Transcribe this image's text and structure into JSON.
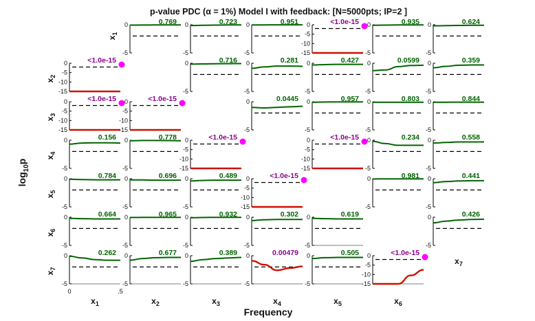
{
  "chart_data": {
    "type": "line",
    "title": "p-value PDC (α = 1%) Model I with feedback: [N=5000pts; IP=2 ]",
    "xlabel": "Frequency",
    "ylabel": "log10p",
    "variables": [
      "x1",
      "x2",
      "x3",
      "x4",
      "x5",
      "x6",
      "x7"
    ],
    "x_ticks": [
      "0",
      ".5"
    ],
    "xlim": [
      0,
      0.5
    ],
    "threshold_log10": -2,
    "colors": {
      "significant": "#cc1100",
      "nonsignificant": "#006400",
      "threshold": "#000000",
      "marker": "#ff00ff",
      "sig_label": "#8b008b",
      "nonsig_label": "#006400"
    },
    "panels": [
      {
        "row": 1,
        "col": 2,
        "label": "0.769",
        "significant": false,
        "ylim": [
          -5,
          0
        ],
        "curve": [
          -0.06,
          -0.05,
          -0.04,
          -0.03,
          -0.02
        ]
      },
      {
        "row": 1,
        "col": 3,
        "label": "0.723",
        "significant": false,
        "ylim": [
          -5,
          0
        ],
        "curve": [
          -0.14,
          -0.1,
          -0.06,
          -0.04,
          -0.03
        ]
      },
      {
        "row": 1,
        "col": 4,
        "label": "0.951",
        "significant": false,
        "ylim": [
          -5,
          0
        ],
        "curve": [
          -0.02,
          -0.02,
          -0.01,
          -0.01,
          -0.01
        ]
      },
      {
        "row": 1,
        "col": 5,
        "label": "<1.0e-15",
        "significant": true,
        "ylim": [
          -15,
          0
        ],
        "curve": [
          -15,
          -15,
          -15,
          -15,
          -15
        ]
      },
      {
        "row": 1,
        "col": 6,
        "label": "0.935",
        "significant": false,
        "ylim": [
          -5,
          0
        ],
        "curve": [
          -0.1,
          -0.06,
          -0.04,
          -0.03,
          -0.02
        ]
      },
      {
        "row": 1,
        "col": 7,
        "label": "0.624",
        "significant": false,
        "ylim": [
          -5,
          0
        ],
        "curve": [
          -0.2,
          -0.16,
          -0.12,
          -0.1,
          -0.08
        ]
      },
      {
        "row": 2,
        "col": 1,
        "label": "<1.0e-15",
        "significant": true,
        "ylim": [
          -15,
          0
        ],
        "curve": [
          -15,
          -15,
          -15,
          -15,
          -15
        ]
      },
      {
        "row": 2,
        "col": 3,
        "label": "0.716",
        "significant": false,
        "ylim": [
          -5,
          0
        ],
        "curve": [
          -0.16,
          -0.12,
          -0.09,
          -0.07,
          -0.06
        ]
      },
      {
        "row": 2,
        "col": 4,
        "label": "0.281",
        "significant": false,
        "ylim": [
          -5,
          0
        ],
        "curve": [
          -0.9,
          -0.65,
          -0.5,
          -0.5,
          -0.55
        ]
      },
      {
        "row": 2,
        "col": 5,
        "label": "0.427",
        "significant": false,
        "ylim": [
          -5,
          0
        ],
        "curve": [
          -0.3,
          -0.25,
          -0.2,
          -0.2,
          -0.2
        ]
      },
      {
        "row": 2,
        "col": 6,
        "label": "0.0599",
        "significant": false,
        "ylim": [
          -5,
          0
        ],
        "curve": [
          -1.3,
          -1.2,
          -0.6,
          -0.4,
          -0.35
        ]
      },
      {
        "row": 2,
        "col": 7,
        "label": "0.359",
        "significant": false,
        "ylim": [
          -5,
          0
        ],
        "curve": [
          -0.8,
          -0.55,
          -0.35,
          -0.3,
          -0.3
        ]
      },
      {
        "row": 3,
        "col": 1,
        "label": "<1.0e-15",
        "significant": true,
        "ylim": [
          -15,
          0
        ],
        "curve": [
          -15,
          -15,
          -15,
          -15,
          -15
        ]
      },
      {
        "row": 3,
        "col": 2,
        "label": "<1.0e-15",
        "significant": true,
        "ylim": [
          -15,
          0
        ],
        "curve": [
          -15,
          -15,
          -15,
          -15,
          -15
        ]
      },
      {
        "row": 3,
        "col": 4,
        "label": "0.0445",
        "significant": false,
        "ylim": [
          -5,
          0
        ],
        "curve": [
          -1.0,
          -1.1,
          -1.0,
          -0.9,
          -0.8
        ]
      },
      {
        "row": 3,
        "col": 5,
        "label": "0.957",
        "significant": false,
        "ylim": [
          -5,
          0
        ],
        "curve": [
          -0.1,
          -0.05,
          -0.03,
          -0.02,
          -0.02
        ]
      },
      {
        "row": 3,
        "col": 6,
        "label": "0.803",
        "significant": false,
        "ylim": [
          -5,
          0
        ],
        "curve": [
          -0.1,
          -0.1,
          -0.09,
          -0.1,
          -0.1
        ]
      },
      {
        "row": 3,
        "col": 7,
        "label": "0.844",
        "significant": false,
        "ylim": [
          -5,
          0
        ],
        "curve": [
          -0.1,
          -0.08,
          -0.07,
          -0.07,
          -0.07
        ]
      },
      {
        "row": 4,
        "col": 1,
        "label": "0.156",
        "significant": false,
        "ylim": [
          -5,
          0
        ],
        "curve": [
          -0.7,
          -0.5,
          -0.45,
          -0.45,
          -0.5
        ]
      },
      {
        "row": 4,
        "col": 2,
        "label": "0.778",
        "significant": false,
        "ylim": [
          -5,
          0
        ],
        "curve": [
          -0.1,
          -0.05,
          -0.05,
          -0.06,
          -0.08
        ]
      },
      {
        "row": 4,
        "col": 3,
        "label": "<1.0e-15",
        "significant": true,
        "ylim": [
          -15,
          0
        ],
        "curve": [
          -15,
          -15,
          -15,
          -15,
          -15
        ]
      },
      {
        "row": 4,
        "col": 5,
        "label": "<1.0e-15",
        "significant": true,
        "ylim": [
          -15,
          0
        ],
        "curve": [
          -15,
          -15,
          -15,
          -15,
          -15
        ]
      },
      {
        "row": 4,
        "col": 6,
        "label": "0.234",
        "significant": false,
        "ylim": [
          -5,
          0
        ],
        "curve": [
          -0.2,
          -0.6,
          -0.9,
          -0.9,
          -0.9
        ]
      },
      {
        "row": 4,
        "col": 7,
        "label": "0.558",
        "significant": false,
        "ylim": [
          -5,
          0
        ],
        "curve": [
          -0.5,
          -0.4,
          -0.3,
          -0.3,
          -0.3
        ]
      },
      {
        "row": 5,
        "col": 1,
        "label": "0.784",
        "significant": false,
        "ylim": [
          -5,
          0
        ],
        "curve": [
          -0.1,
          -0.15,
          -0.2,
          -0.2,
          -0.2
        ]
      },
      {
        "row": 5,
        "col": 2,
        "label": "0.696",
        "significant": false,
        "ylim": [
          -5,
          0
        ],
        "curve": [
          -0.2,
          -0.22,
          -0.25,
          -0.25,
          -0.25
        ]
      },
      {
        "row": 5,
        "col": 3,
        "label": "0.489",
        "significant": false,
        "ylim": [
          -5,
          0
        ],
        "curve": [
          -0.4,
          -0.3,
          -0.25,
          -0.25,
          -0.25
        ]
      },
      {
        "row": 5,
        "col": 4,
        "label": "<1.0e-15",
        "significant": true,
        "ylim": [
          -15,
          0
        ],
        "curve": [
          -15,
          -15,
          -15,
          -15,
          -15
        ]
      },
      {
        "row": 5,
        "col": 6,
        "label": "0.981",
        "significant": false,
        "ylim": [
          -5,
          0
        ],
        "curve": [
          -0.05,
          -0.03,
          -0.02,
          -0.02,
          -0.02
        ]
      },
      {
        "row": 5,
        "col": 7,
        "label": "0.441",
        "significant": false,
        "ylim": [
          -5,
          0
        ],
        "curve": [
          -0.7,
          -0.5,
          -0.4,
          -0.35,
          -0.35
        ]
      },
      {
        "row": 6,
        "col": 1,
        "label": "0.664",
        "significant": false,
        "ylim": [
          -5,
          0
        ],
        "curve": [
          -0.2,
          -0.25,
          -0.3,
          -0.3,
          -0.3
        ]
      },
      {
        "row": 6,
        "col": 2,
        "label": "0.965",
        "significant": false,
        "ylim": [
          -5,
          0
        ],
        "curve": [
          -0.05,
          -0.04,
          -0.03,
          -0.03,
          -0.03
        ]
      },
      {
        "row": 6,
        "col": 3,
        "label": "0.932",
        "significant": false,
        "ylim": [
          -5,
          0
        ],
        "curve": [
          -0.1,
          -0.05,
          -0.03,
          -0.03,
          -0.03
        ]
      },
      {
        "row": 6,
        "col": 4,
        "label": "0.302",
        "significant": false,
        "ylim": [
          -5,
          0
        ],
        "curve": [
          -0.6,
          -0.45,
          -0.4,
          -0.4,
          -0.4
        ]
      },
      {
        "row": 6,
        "col": 5,
        "label": "0.619",
        "significant": false,
        "ylim": [
          -5,
          0
        ],
        "curve": [
          -0.2,
          -0.25,
          -0.3,
          -0.3,
          -0.3
        ]
      },
      {
        "row": 6,
        "col": 7,
        "label": "0.426",
        "significant": false,
        "ylim": [
          -5,
          0
        ],
        "curve": [
          -1.0,
          -0.7,
          -0.5,
          -0.4,
          -0.35
        ]
      },
      {
        "row": 7,
        "col": 1,
        "label": "0.262",
        "significant": false,
        "ylim": [
          -5,
          0
        ],
        "curve": [
          -0.1,
          -0.4,
          -0.7,
          -0.8,
          -0.8
        ]
      },
      {
        "row": 7,
        "col": 2,
        "label": "0.677",
        "significant": false,
        "ylim": [
          -5,
          0
        ],
        "curve": [
          -0.8,
          -0.5,
          -0.35,
          -0.3,
          -0.3
        ]
      },
      {
        "row": 7,
        "col": 3,
        "label": "0.389",
        "significant": false,
        "ylim": [
          -5,
          0
        ],
        "curve": [
          -1.0,
          -0.7,
          -0.5,
          -0.4,
          -0.3
        ]
      },
      {
        "row": 7,
        "col": 4,
        "label": "0.00479",
        "significant": true,
        "ylim": [
          -5,
          0
        ],
        "curve": [
          -0.9,
          -1.6,
          -2.6,
          -2.2,
          -1.9
        ]
      },
      {
        "row": 7,
        "col": 5,
        "label": "0.505",
        "significant": false,
        "ylim": [
          -5,
          0
        ],
        "curve": [
          -0.5,
          -0.35,
          -0.3,
          -0.3,
          -0.3
        ]
      },
      {
        "row": 7,
        "col": 6,
        "label": "<1.0e-15",
        "significant": true,
        "ylim": [
          -15,
          0
        ],
        "curve": [
          -15,
          -15,
          -15,
          -10.5,
          -7.5
        ]
      }
    ]
  }
}
